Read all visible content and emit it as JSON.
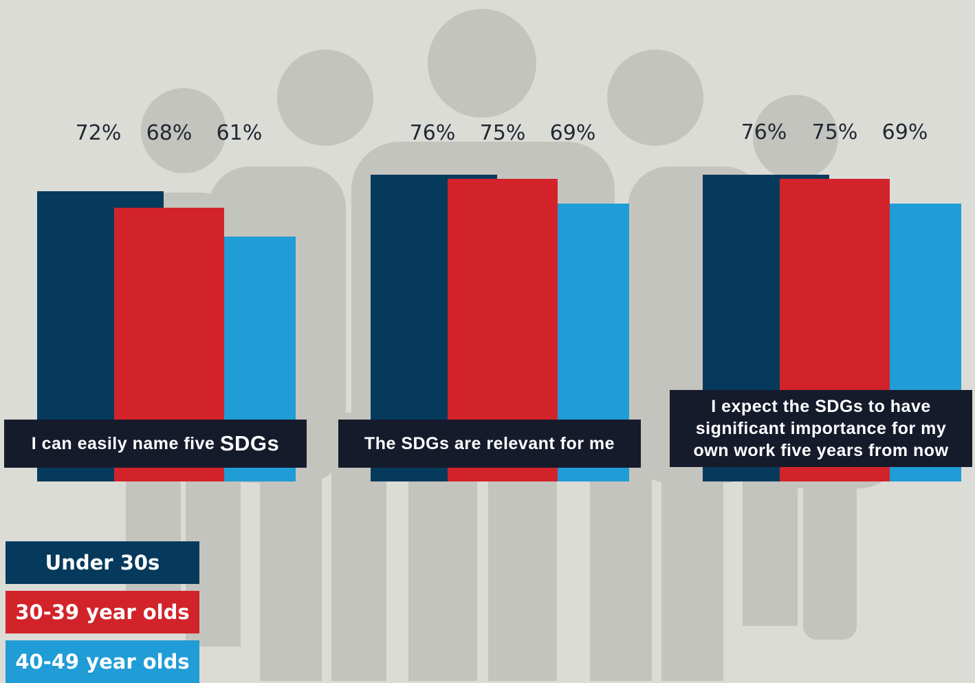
{
  "chart_data": {
    "type": "bar",
    "categories": [
      "I can easily name five SDGs",
      "The SDGs are relevant for me",
      "I expect the SDGs to have significant importance for my own work five years from now"
    ],
    "series": [
      {
        "name": "Under 30s",
        "values": [
          72,
          76,
          76
        ],
        "color": "#063a5c"
      },
      {
        "name": "30-39 year olds",
        "values": [
          68,
          75,
          75
        ],
        "color": "#d2232a"
      },
      {
        "name": "40-49 year olds",
        "values": [
          61,
          69,
          69
        ],
        "color": "#209cd6"
      }
    ],
    "value_labels": [
      [
        "72%",
        "68%",
        "61%"
      ],
      [
        "76%",
        "75%",
        "69%"
      ],
      [
        "76%",
        "75%",
        "69%"
      ]
    ],
    "legend": [
      "Under 30s",
      "30-39 year olds",
      "40-49 year olds"
    ],
    "legend_position": "bottom-left",
    "grid": false,
    "title": "",
    "xlabel": "",
    "ylabel": ""
  },
  "labels": {
    "cat1_text": "I can easily name five",
    "cat1_emph": "SDGs",
    "cat2": "The SDGs are relevant for me",
    "cat3": "I expect the SDGs to have significant importance for my own work five years from now"
  },
  "colors": {
    "background": "#dcdcd7",
    "silhouette": "#c4c4be",
    "label_box": "#161b2c"
  },
  "background_icon": "people-group-silhouette"
}
